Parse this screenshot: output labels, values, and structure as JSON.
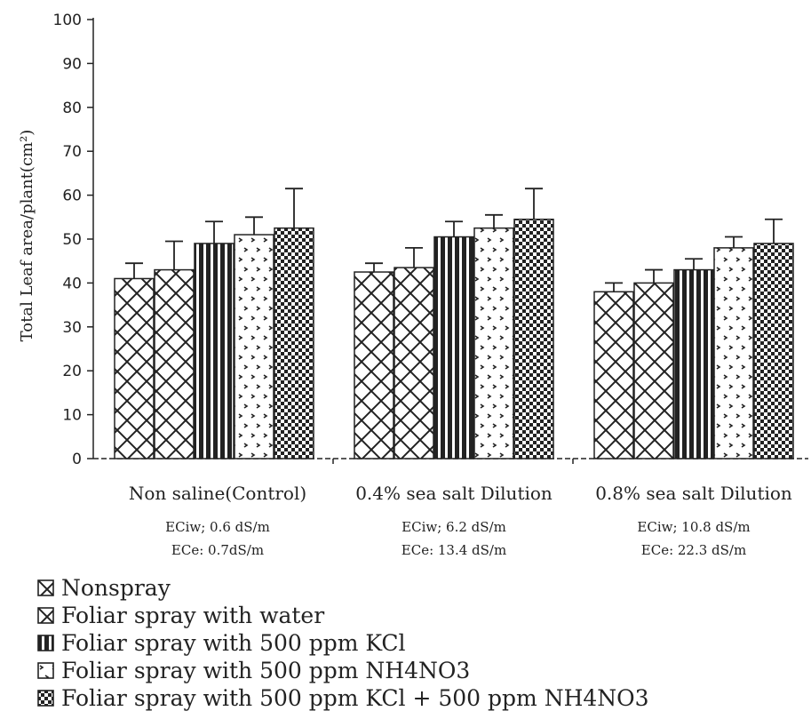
{
  "chart_data": {
    "type": "bar",
    "ylabel": "Total Leaf area/plant(cm²)",
    "ylim": [
      0,
      100
    ],
    "yticks": [
      0,
      10,
      20,
      30,
      40,
      50,
      60,
      70,
      80,
      90,
      100
    ],
    "categories": [
      "Non saline(Control)",
      "0.4% sea salt Dilution",
      "0.8% sea salt Dilution"
    ],
    "category_notes": [
      [
        "ECiw; 0.6 dS/m",
        "ECe: 0.7dS/m"
      ],
      [
        "ECiw; 6.2 dS/m",
        "ECe: 13.4 dS/m"
      ],
      [
        "ECiw; 10.8 dS/m",
        "ECe: 22.3 dS/m"
      ]
    ],
    "series": [
      {
        "name": "Nonspray",
        "pattern": "crosshatch",
        "values": [
          41,
          42.5,
          38
        ],
        "errors": [
          3.5,
          2,
          2
        ]
      },
      {
        "name": "Foliar spray with water",
        "pattern": "crosshatch",
        "values": [
          43,
          43.5,
          40
        ],
        "errors": [
          6.5,
          4.5,
          3
        ]
      },
      {
        "name": "Foliar spray with 500 ppm KCl",
        "pattern": "vertical",
        "values": [
          49,
          50.5,
          43
        ],
        "errors": [
          5,
          3.5,
          2.5
        ]
      },
      {
        "name": "Foliar spray with 500 ppm NH4NO3",
        "pattern": "dots",
        "values": [
          51,
          52.5,
          48
        ],
        "errors": [
          4,
          3,
          2.5
        ]
      },
      {
        "name": "Foliar spray with 500 ppm KCl + 500 ppm NH4NO3",
        "pattern": "checker",
        "values": [
          52.5,
          54.5,
          49
        ],
        "errors": [
          9,
          7,
          5.5
        ]
      }
    ],
    "legend_position": "bottom",
    "grid": false,
    "colors": {
      "stroke": "#222222",
      "fill": "#ffffff"
    }
  }
}
